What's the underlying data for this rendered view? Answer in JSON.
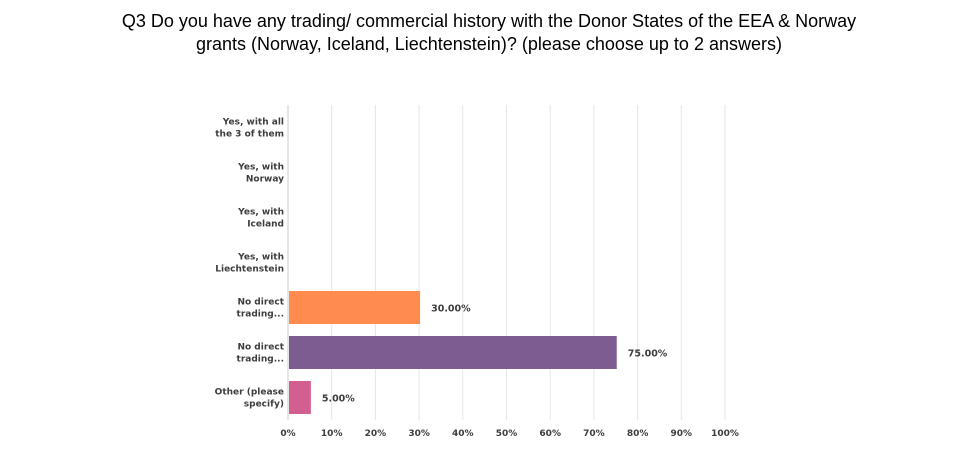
{
  "title": {
    "line1": "Q3 Do you have any trading/ commercial history with the Donor States of the EEA & Norway",
    "line2": "grants (Norway, Iceland, Liechtenstein)? (please choose up to 2 answers)"
  },
  "chart_data": {
    "type": "bar",
    "orientation": "horizontal",
    "title": "Q3 Do you have any trading/ commercial history with the Donor States of the EEA & Norway grants (Norway, Iceland, Liechtenstein)? (please choose up to 2 answers)",
    "categories": [
      [
        "Yes, with all",
        "the 3 of them"
      ],
      [
        "Yes, with",
        "Norway"
      ],
      [
        "Yes, with",
        "Iceland"
      ],
      [
        "Yes, with",
        "Liechtenstein"
      ],
      [
        "No direct",
        "trading..."
      ],
      [
        "No direct",
        "trading..."
      ],
      [
        "Other (please",
        "specify)"
      ]
    ],
    "values": [
      0,
      0,
      0,
      0,
      30,
      75,
      5
    ],
    "value_labels": [
      "",
      "",
      "",
      "",
      "30.00%",
      "75.00%",
      "5.00%"
    ],
    "bar_colors": [
      "#6bc8cd",
      "#6bc8cd",
      "#6bc8cd",
      "#6bc8cd",
      "#ff8b4f",
      "#7d5d91",
      "#d25f90"
    ],
    "xlim": [
      0,
      100
    ],
    "xticks": [
      "0%",
      "10%",
      "20%",
      "30%",
      "40%",
      "50%",
      "60%",
      "70%",
      "80%",
      "90%",
      "100%"
    ],
    "grid": true,
    "grid_color": "#e6e6e6",
    "axis_color": "#cccccc"
  }
}
